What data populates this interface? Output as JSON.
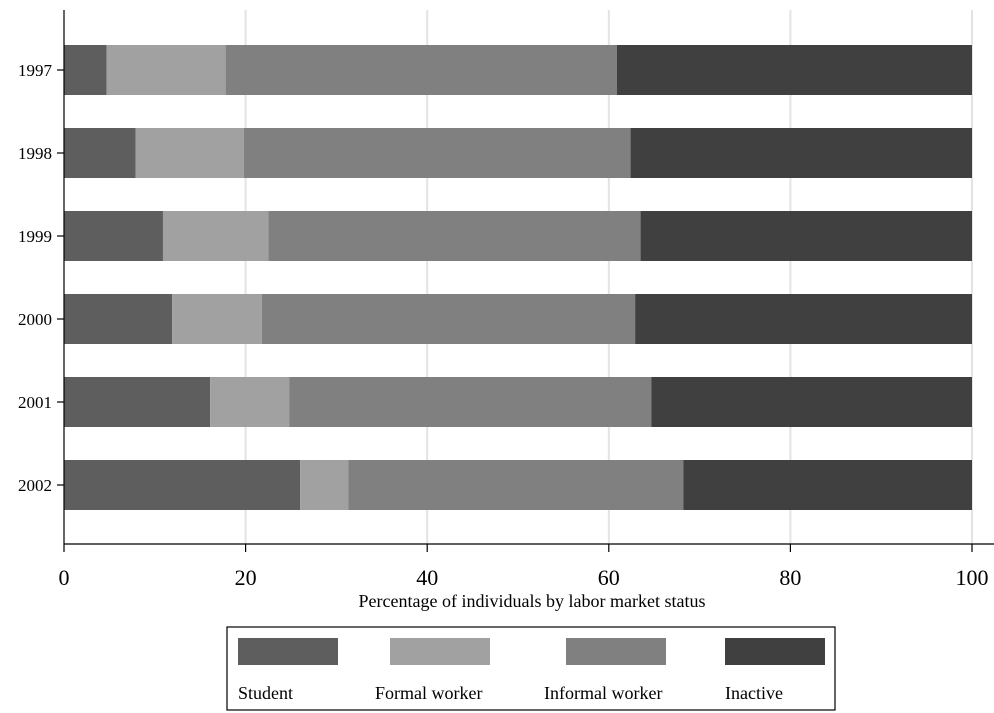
{
  "chart_data": {
    "type": "bar",
    "orientation": "horizontal",
    "stacked": true,
    "categories": [
      "1997",
      "1998",
      "1999",
      "2000",
      "2001",
      "2002"
    ],
    "series": [
      {
        "name": "Student",
        "color": "#5e5e5e",
        "values": [
          4.7,
          7.9,
          10.9,
          11.9,
          16.1,
          26.0
        ]
      },
      {
        "name": "Formal worker",
        "color": "#a1a1a1",
        "values": [
          13.1,
          11.9,
          11.6,
          9.9,
          8.7,
          5.3
        ]
      },
      {
        "name": "Informal worker",
        "color": "#808080",
        "values": [
          43.1,
          42.6,
          41.0,
          41.1,
          39.9,
          36.9
        ]
      },
      {
        "name": "Inactive",
        "color": "#404040",
        "values": [
          39.1,
          37.6,
          36.5,
          37.1,
          35.3,
          31.8
        ]
      }
    ],
    "xlabel": "Percentage of individuals by labor market status",
    "ylabel": "",
    "xlim": [
      0,
      100
    ],
    "xticks": [
      "0",
      "20",
      "40",
      "60",
      "80",
      "100"
    ],
    "grid": "vertical",
    "legend": "bottom"
  }
}
